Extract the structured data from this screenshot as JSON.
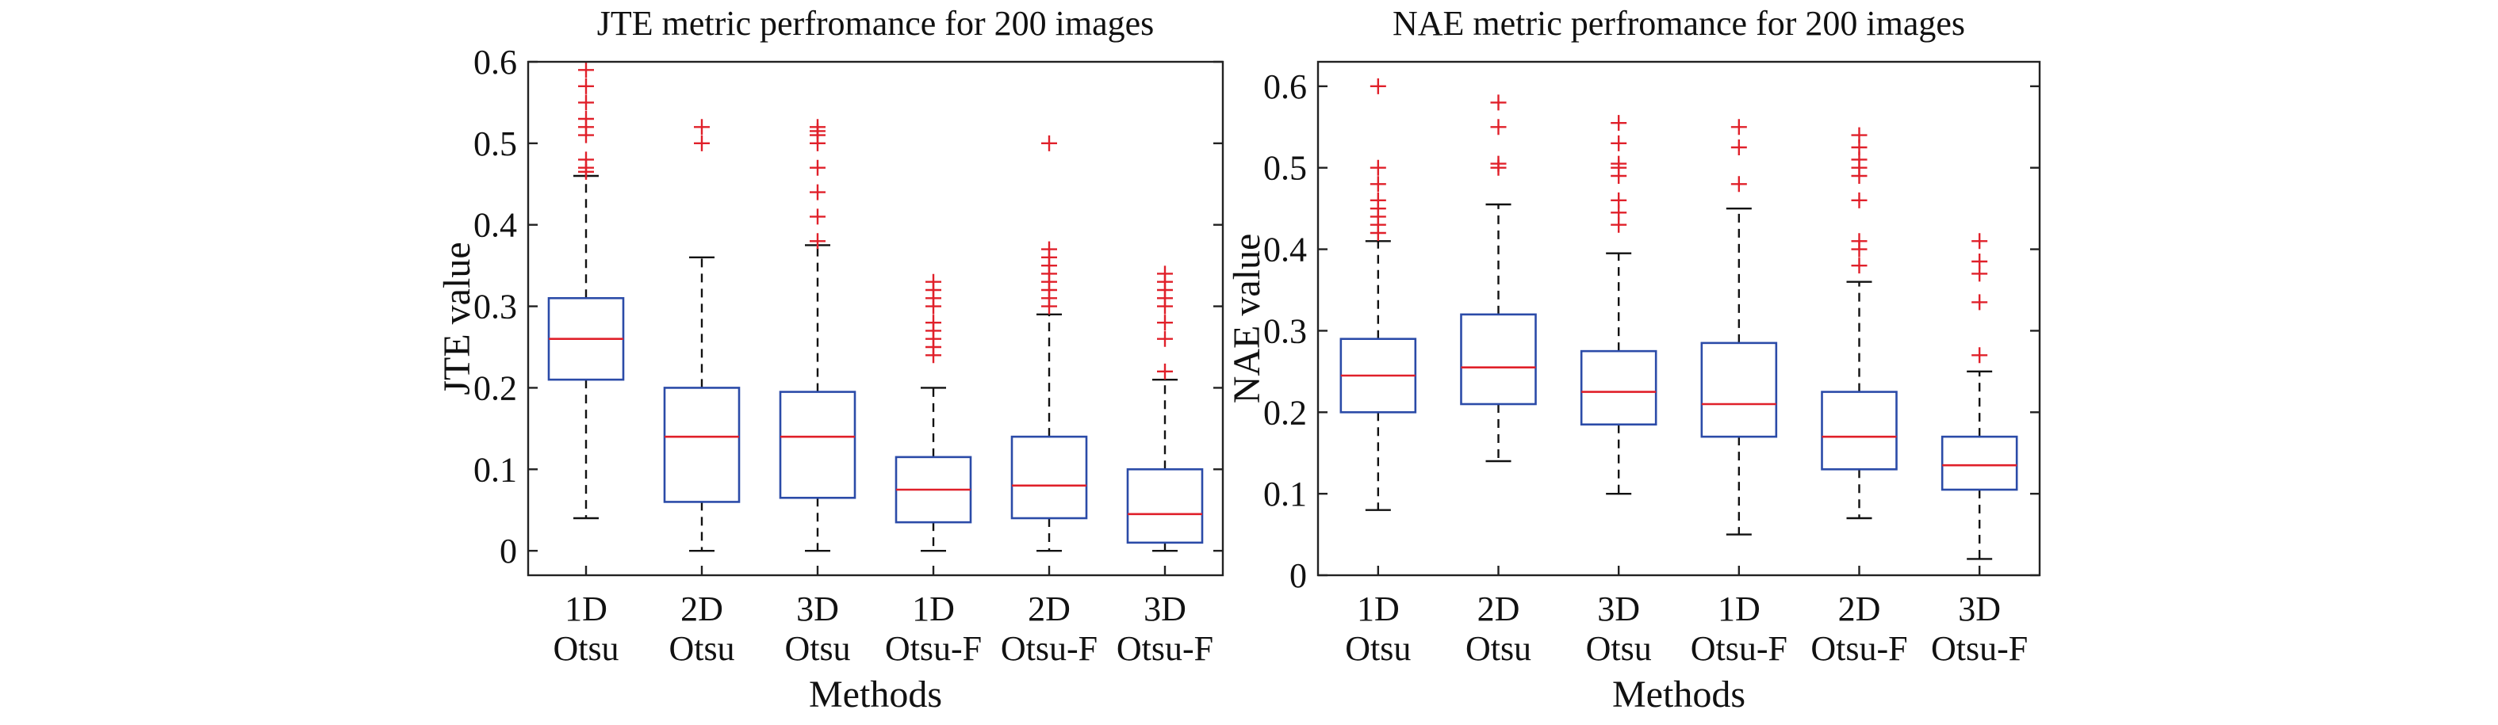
{
  "colors": {
    "box": "#2b4ba8",
    "median": "#e0202a",
    "outlier": "#e0202a",
    "whisker": "#111111",
    "axis": "#222222"
  },
  "chart_data": [
    {
      "type": "box",
      "title": "JTE metric perfromance for 200 images",
      "xlabel": "Methods",
      "ylabel": "JTE value",
      "ylim": [
        -0.03,
        0.6
      ],
      "yticks": [
        0,
        0.1,
        0.2,
        0.3,
        0.4,
        0.5,
        0.6
      ],
      "ytick_labels": [
        "0",
        "0.1",
        "0.2",
        "0.3",
        "0.4",
        "0.5",
        "0.6"
      ],
      "grid": false,
      "categories": [
        {
          "line1": "1D",
          "line2": "Otsu"
        },
        {
          "line1": "2D",
          "line2": "Otsu"
        },
        {
          "line1": "3D",
          "line2": "Otsu"
        },
        {
          "line1": "1D",
          "line2": "Otsu-F"
        },
        {
          "line1": "2D",
          "line2": "Otsu-F"
        },
        {
          "line1": "3D",
          "line2": "Otsu-F"
        }
      ],
      "boxes": [
        {
          "whisker_low": 0.04,
          "q1": 0.21,
          "median": 0.26,
          "q3": 0.31,
          "whisker_high": 0.46,
          "outliers": [
            0.465,
            0.47,
            0.48,
            0.51,
            0.52,
            0.53,
            0.55,
            0.57,
            0.59
          ]
        },
        {
          "whisker_low": 0.0,
          "q1": 0.06,
          "median": 0.14,
          "q3": 0.2,
          "whisker_high": 0.36,
          "outliers": [
            0.5,
            0.52
          ]
        },
        {
          "whisker_low": 0.0,
          "q1": 0.065,
          "median": 0.14,
          "q3": 0.195,
          "whisker_high": 0.375,
          "outliers": [
            0.38,
            0.41,
            0.44,
            0.47,
            0.5,
            0.51,
            0.515,
            0.52
          ]
        },
        {
          "whisker_low": 0.0,
          "q1": 0.035,
          "median": 0.075,
          "q3": 0.115,
          "whisker_high": 0.2,
          "outliers": [
            0.24,
            0.25,
            0.26,
            0.27,
            0.28,
            0.3,
            0.31,
            0.32,
            0.33
          ]
        },
        {
          "whisker_low": 0.0,
          "q1": 0.04,
          "median": 0.08,
          "q3": 0.14,
          "whisker_high": 0.29,
          "outliers": [
            0.3,
            0.31,
            0.32,
            0.33,
            0.34,
            0.35,
            0.36,
            0.37,
            0.5
          ]
        },
        {
          "whisker_low": 0.0,
          "q1": 0.01,
          "median": 0.045,
          "q3": 0.1,
          "whisker_high": 0.21,
          "outliers": [
            0.22,
            0.26,
            0.28,
            0.3,
            0.31,
            0.32,
            0.33,
            0.34
          ]
        }
      ]
    },
    {
      "type": "box",
      "title": "NAE metric perfromance for 200 images",
      "xlabel": "Methods",
      "ylabel": "NAE value",
      "ylim": [
        0,
        0.63
      ],
      "yticks": [
        0,
        0.1,
        0.2,
        0.3,
        0.4,
        0.5,
        0.6
      ],
      "ytick_labels": [
        "0",
        "0.1",
        "0.2",
        "0.3",
        "0.4",
        "0.5",
        "0.6"
      ],
      "grid": false,
      "categories": [
        {
          "line1": "1D",
          "line2": "Otsu"
        },
        {
          "line1": "2D",
          "line2": "Otsu"
        },
        {
          "line1": "3D",
          "line2": "Otsu"
        },
        {
          "line1": "1D",
          "line2": "Otsu-F"
        },
        {
          "line1": "2D",
          "line2": "Otsu-F"
        },
        {
          "line1": "3D",
          "line2": "Otsu-F"
        }
      ],
      "boxes": [
        {
          "whisker_low": 0.08,
          "q1": 0.2,
          "median": 0.245,
          "q3": 0.29,
          "whisker_high": 0.41,
          "outliers": [
            0.42,
            0.43,
            0.44,
            0.45,
            0.46,
            0.48,
            0.5,
            0.6
          ]
        },
        {
          "whisker_low": 0.14,
          "q1": 0.21,
          "median": 0.255,
          "q3": 0.32,
          "whisker_high": 0.455,
          "outliers": [
            0.5,
            0.505,
            0.55,
            0.58
          ]
        },
        {
          "whisker_low": 0.1,
          "q1": 0.185,
          "median": 0.225,
          "q3": 0.275,
          "whisker_high": 0.395,
          "outliers": [
            0.43,
            0.445,
            0.46,
            0.49,
            0.5,
            0.505,
            0.53,
            0.555
          ]
        },
        {
          "whisker_low": 0.05,
          "q1": 0.17,
          "median": 0.21,
          "q3": 0.285,
          "whisker_high": 0.45,
          "outliers": [
            0.48,
            0.525,
            0.55
          ]
        },
        {
          "whisker_low": 0.07,
          "q1": 0.13,
          "median": 0.17,
          "q3": 0.225,
          "whisker_high": 0.36,
          "outliers": [
            0.38,
            0.4,
            0.41,
            0.46,
            0.49,
            0.5,
            0.51,
            0.525,
            0.54
          ]
        },
        {
          "whisker_low": 0.02,
          "q1": 0.105,
          "median": 0.135,
          "q3": 0.17,
          "whisker_high": 0.25,
          "outliers": [
            0.27,
            0.335,
            0.37,
            0.385,
            0.41
          ]
        }
      ]
    }
  ]
}
